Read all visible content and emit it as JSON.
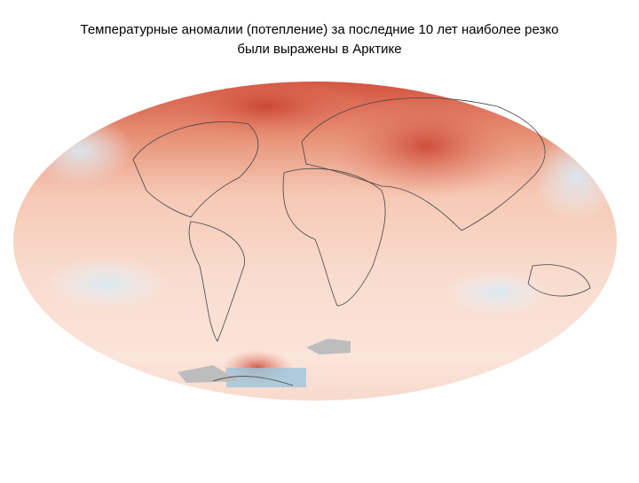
{
  "title": {
    "lines": [
      "Температурные аномалии (потепление) за последние 10 лет наиболее резко",
      "были выражены в Арктике"
    ]
  }
}
